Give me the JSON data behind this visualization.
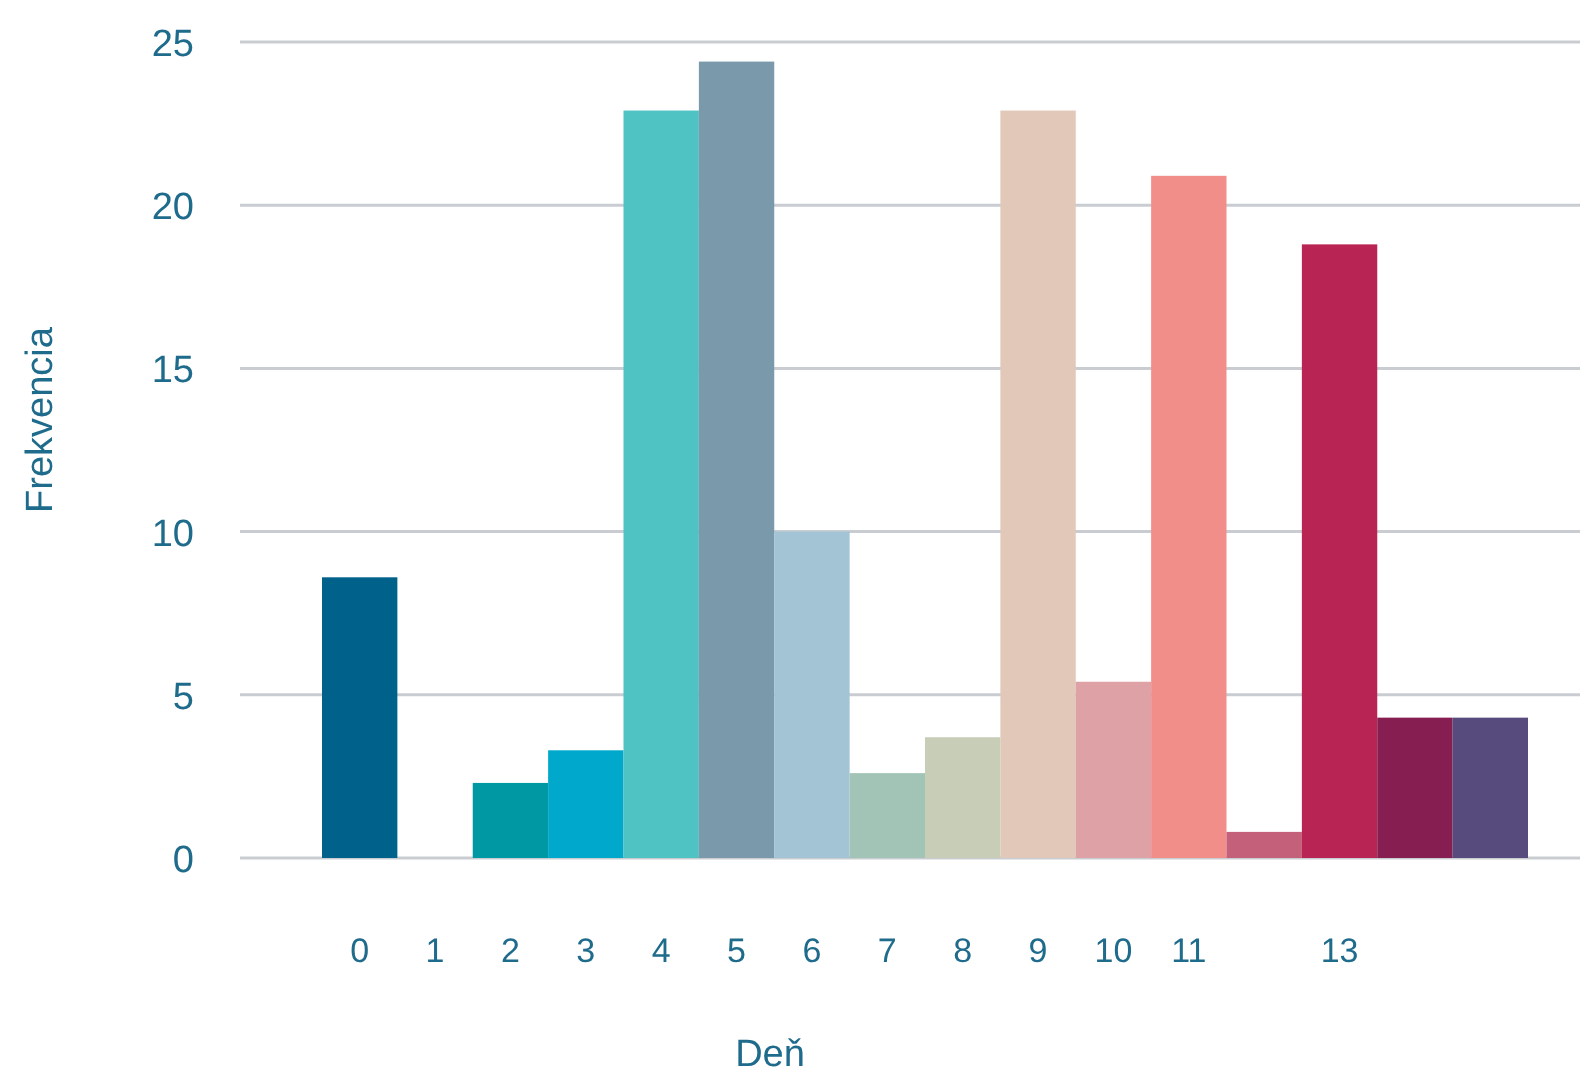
{
  "chart_data": {
    "type": "bar",
    "xlabel": "Deň",
    "ylabel": "Frekvencia",
    "categories": [
      "0",
      "1",
      "2",
      "3",
      "4",
      "5",
      "6",
      "7",
      "8",
      "9",
      "10",
      "11",
      null,
      "13",
      null,
      null
    ],
    "values": [
      8.6,
      0,
      2.3,
      3.3,
      22.9,
      24.4,
      10,
      2.6,
      3.7,
      22.9,
      5.4,
      20.9,
      0.8,
      18.8,
      4.3,
      4.3
    ],
    "colors": [
      "#00628b",
      "#0b7a94",
      "#0099a3",
      "#00a9cc",
      "#4fc3c3",
      "#7a9aab",
      "#a3c4d4",
      "#a2c4b7",
      "#c8cdb8",
      "#e2c8b8",
      "#dea1a5",
      "#f28e89",
      "#c4607a",
      "#b82555",
      "#861e52",
      "#574a7c"
    ],
    "ylim": [
      0,
      25
    ],
    "yticks": [
      0,
      5,
      10,
      15,
      20,
      25
    ],
    "grid": "y"
  }
}
